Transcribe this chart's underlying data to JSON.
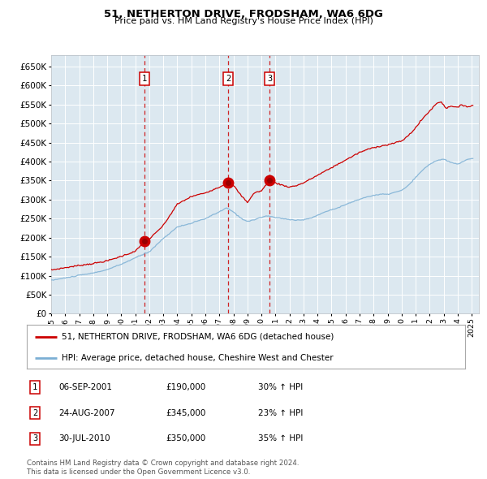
{
  "title": "51, NETHERTON DRIVE, FRODSHAM, WA6 6DG",
  "subtitle": "Price paid vs. HM Land Registry's House Price Index (HPI)",
  "legend_line1": "51, NETHERTON DRIVE, FRODSHAM, WA6 6DG (detached house)",
  "legend_line2": "HPI: Average price, detached house, Cheshire West and Chester",
  "sale_info": [
    {
      "label": "1",
      "date": "06-SEP-2001",
      "price": "£190,000",
      "hpi": "30% ↑ HPI"
    },
    {
      "label": "2",
      "date": "24-AUG-2007",
      "price": "£345,000",
      "hpi": "23% ↑ HPI"
    },
    {
      "label": "3",
      "date": "30-JUL-2010",
      "price": "£350,000",
      "hpi": "35% ↑ HPI"
    }
  ],
  "sale_year_floats": [
    2001.678,
    2007.644,
    2010.58
  ],
  "sale_prices": [
    190000,
    345000,
    350000
  ],
  "footer1": "Contains HM Land Registry data © Crown copyright and database right 2024.",
  "footer2": "This data is licensed under the Open Government Licence v3.0.",
  "red_line_color": "#cc0000",
  "blue_line_color": "#7bafd4",
  "bg_color": "#dce8f0",
  "grid_color": "#ffffff",
  "outer_bg": "#ffffff",
  "dashed_color": "#cc0000",
  "ylim": [
    0,
    680000
  ],
  "yticks": [
    0,
    50000,
    100000,
    150000,
    200000,
    250000,
    300000,
    350000,
    400000,
    450000,
    500000,
    550000,
    600000,
    650000
  ],
  "xstart": 1995.0,
  "xend": 2025.5
}
